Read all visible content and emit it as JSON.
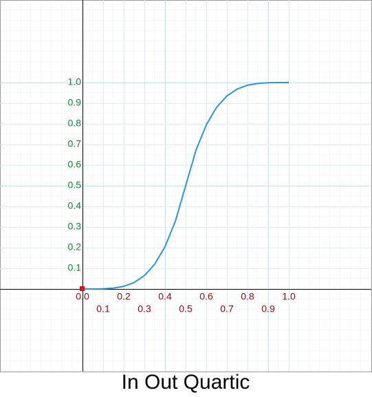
{
  "chart_data": {
    "type": "line",
    "title": "In Out Quartic",
    "x": [
      0,
      0.05,
      0.1,
      0.15,
      0.2,
      0.25,
      0.3,
      0.35,
      0.4,
      0.45,
      0.5,
      0.55,
      0.6,
      0.65,
      0.7,
      0.75,
      0.8,
      0.85,
      0.9,
      0.95,
      1
    ],
    "series": [
      {
        "name": "In Out Quartic",
        "color": "#2b93d9",
        "values": [
          0,
          5e-05,
          0.0008,
          0.00405,
          0.0128,
          0.03125,
          0.0648,
          0.12005,
          0.2048,
          0.32805,
          0.5,
          0.67195,
          0.7952,
          0.87995,
          0.9352,
          0.96875,
          0.9872,
          0.99595,
          0.9992,
          0.99995,
          1
        ]
      }
    ],
    "xlim": [
      -0.4,
      1.4
    ],
    "ylim": [
      -0.4,
      1.4
    ],
    "xticks": [
      {
        "value": 0,
        "label": "0.0"
      },
      0.1,
      0.2,
      0.3,
      0.4,
      0.5,
      0.6,
      0.7,
      0.8,
      0.9,
      {
        "value": 1,
        "label": "1.0"
      }
    ],
    "yticks": [
      0.1,
      0.2,
      0.3,
      0.4,
      0.5,
      0.6,
      0.7,
      0.8,
      0.9,
      {
        "value": 1,
        "label": "1.0"
      }
    ],
    "grid": true
  }
}
